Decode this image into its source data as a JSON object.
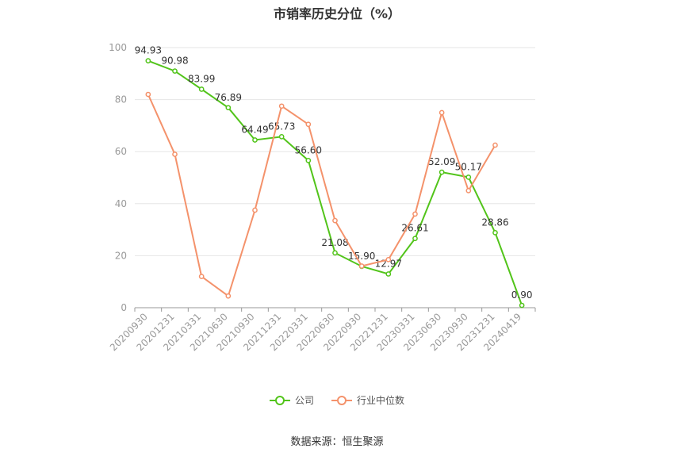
{
  "title": "市销率历史分位（%）",
  "source": "数据来源：恒生聚源",
  "chart_data": {
    "type": "line",
    "categories": [
      "20200930",
      "20201231",
      "20210331",
      "20210630",
      "20210930",
      "20211231",
      "20220331",
      "20220630",
      "20220930",
      "20221231",
      "20230331",
      "20230630",
      "20230930",
      "20231231",
      "20240419"
    ],
    "ylim": [
      0,
      100
    ],
    "yticks": [
      0,
      20,
      40,
      60,
      80,
      100
    ],
    "grid": true,
    "legend_position": "bottom",
    "series": [
      {
        "name": "公司",
        "color": "#52c41a",
        "values": [
          94.93,
          90.98,
          83.99,
          76.89,
          64.49,
          65.73,
          56.6,
          21.08,
          15.9,
          12.97,
          26.61,
          52.09,
          50.17,
          28.86,
          0.9
        ],
        "labels": [
          "94.93",
          "90.98",
          "83.99",
          "76.89",
          "64.49",
          "65.73",
          "56.60",
          "21.08",
          "15.90",
          "12.97",
          "26.61",
          "52.09",
          "50.17",
          "28.86",
          "0.90"
        ],
        "show_labels": true
      },
      {
        "name": "行业中位数",
        "color": "#f4926b",
        "values": [
          82,
          59,
          12,
          4.5,
          37.5,
          77.5,
          70.5,
          33.5,
          16,
          18.5,
          36,
          75,
          45,
          62.5,
          null
        ],
        "show_labels": false
      }
    ]
  }
}
